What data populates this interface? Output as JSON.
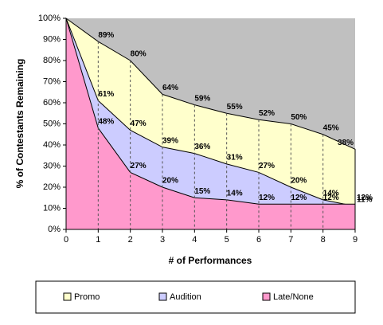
{
  "chart_data": {
    "type": "area",
    "x_label": "# of Performances",
    "y_label": "% of Contestants Remaining",
    "x": [
      0,
      1,
      2,
      3,
      4,
      5,
      6,
      7,
      8,
      9
    ],
    "xlim": [
      0,
      9
    ],
    "xticks": [
      0,
      1,
      2,
      3,
      4,
      5,
      6,
      7,
      8,
      9
    ],
    "ylim": [
      0,
      100
    ],
    "yticks": [
      {
        "value": 0,
        "label": "0%"
      },
      {
        "value": 10,
        "label": "10%"
      },
      {
        "value": 20,
        "label": "20%"
      },
      {
        "value": 30,
        "label": "30%"
      },
      {
        "value": 40,
        "label": "40%"
      },
      {
        "value": 50,
        "label": "50%"
      },
      {
        "value": 60,
        "label": "60%"
      },
      {
        "value": 70,
        "label": "70%"
      },
      {
        "value": 80,
        "label": "80%"
      },
      {
        "value": 90,
        "label": "90%"
      },
      {
        "value": 100,
        "label": "100%"
      }
    ],
    "legend": "bottom",
    "series": [
      {
        "name": "Promo",
        "color": "#ffffcc",
        "label_color": "#666600",
        "values": [
          100,
          89,
          80,
          64,
          59,
          55,
          52,
          50,
          45,
          38
        ],
        "value_labels": [
          null,
          "89%",
          "80%",
          "64%",
          "59%",
          "55%",
          "52%",
          "50%",
          "45%",
          "38%"
        ]
      },
      {
        "name": "Audition",
        "color": "#ccccff",
        "label_color": "#003366",
        "values": [
          100,
          61,
          47,
          39,
          36,
          31,
          27,
          20,
          14,
          11
        ],
        "value_labels": [
          null,
          "61%",
          "47%",
          "39%",
          "36%",
          "31%",
          "27%",
          "20%",
          "14%",
          "11%"
        ]
      },
      {
        "name": "Late/None",
        "color": "#ff99cc",
        "label_color": "#990033",
        "values": [
          100,
          48,
          27,
          20,
          15,
          14,
          12,
          12,
          12,
          12
        ],
        "value_labels": [
          null,
          "48%",
          "27%",
          "20%",
          "15%",
          "14%",
          "12%",
          "12%",
          "12%",
          "12%"
        ]
      }
    ]
  }
}
